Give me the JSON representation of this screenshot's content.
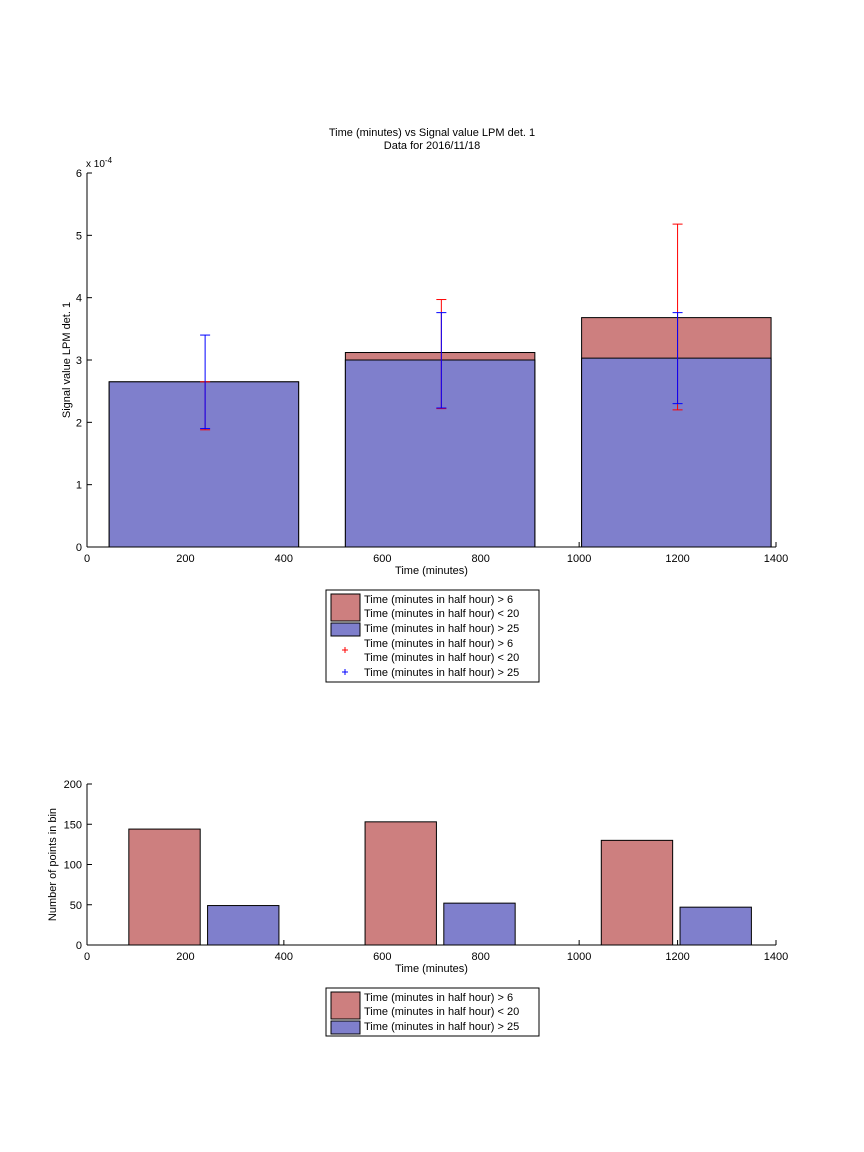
{
  "chart_data": [
    {
      "type": "bar",
      "title": "Time (minutes) vs Signal value LPM det. 1",
      "subtitle": "Data for 2016/11/18",
      "xlabel": "Time (minutes)",
      "ylabel": "Signal value LPM det. 1",
      "exponent_label": "x 10",
      "exponent_power": "-4",
      "xlim": [
        0,
        1400
      ],
      "ylim": [
        0,
        6
      ],
      "xticks": [
        0,
        200,
        400,
        600,
        800,
        1000,
        1200,
        1400
      ],
      "yticks": [
        0,
        1,
        2,
        3,
        4,
        5,
        6
      ],
      "bins": [
        {
          "from": 45,
          "to": 430,
          "center": 240
        },
        {
          "from": 525,
          "to": 910,
          "center": 720
        },
        {
          "from": 1005,
          "to": 1390,
          "center": 1200
        }
      ],
      "series": [
        {
          "name": "Time (minutes in half hour) > 6\nTime (minutes in half hour) < 20",
          "color": "#cd7f7f",
          "values": [
            2.65,
            3.12,
            3.68
          ],
          "errorbars": [
            [
              1.88,
              2.65
            ],
            [
              2.22,
              3.97
            ],
            [
              2.2,
              5.18
            ]
          ],
          "errcolor": "#ff0000"
        },
        {
          "name": "Time (minutes in half hour) > 25",
          "color": "#7f7fcc",
          "values": [
            2.65,
            3.0,
            3.03
          ],
          "errorbars": [
            [
              1.9,
              3.4
            ],
            [
              2.23,
              3.76
            ],
            [
              2.3,
              3.76
            ]
          ],
          "errcolor": "#0000ff"
        }
      ],
      "legend": [
        {
          "type": "patch",
          "color": "#cd7f7f",
          "lines": [
            "Time (minutes in half hour) > 6",
            "Time (minutes in half hour) < 20"
          ]
        },
        {
          "type": "patch",
          "color": "#7f7fcc",
          "lines": [
            "Time (minutes in half hour) > 25"
          ]
        },
        {
          "type": "marker",
          "color": "#ff0000",
          "lines": [
            "Time (minutes in half hour) > 6",
            "Time (minutes in half hour) < 20"
          ]
        },
        {
          "type": "marker",
          "color": "#0000ff",
          "lines": [
            "Time (minutes in half hour) > 25"
          ]
        }
      ],
      "legend_placement": "below"
    },
    {
      "type": "bar",
      "xlabel": "Time (minutes)",
      "ylabel": "Number of points in bin",
      "xlim": [
        0,
        1400
      ],
      "ylim": [
        0,
        200
      ],
      "xticks": [
        0,
        200,
        400,
        600,
        800,
        1000,
        1200,
        1400
      ],
      "yticks": [
        0,
        50,
        100,
        150,
        200
      ],
      "series": [
        {
          "name": "Time (minutes in half hour) > 6\nTime (minutes in half hour) < 20",
          "color": "#cd7f7f",
          "bars": [
            {
              "from": 85,
              "to": 230,
              "value": 144
            },
            {
              "from": 565,
              "to": 710,
              "value": 153
            },
            {
              "from": 1045,
              "to": 1190,
              "value": 130
            }
          ]
        },
        {
          "name": "Time (minutes in half hour) > 25",
          "color": "#7f7fcc",
          "bars": [
            {
              "from": 245,
              "to": 390,
              "value": 49
            },
            {
              "from": 725,
              "to": 870,
              "value": 52
            },
            {
              "from": 1205,
              "to": 1350,
              "value": 47
            }
          ]
        }
      ],
      "legend": [
        {
          "type": "patch",
          "color": "#cd7f7f",
          "lines": [
            "Time (minutes in half hour) > 6",
            "Time (minutes in half hour) < 20"
          ]
        },
        {
          "type": "patch",
          "color": "#7f7fcc",
          "lines": [
            "Time (minutes in half hour) > 25"
          ]
        }
      ],
      "legend_placement": "below"
    }
  ]
}
